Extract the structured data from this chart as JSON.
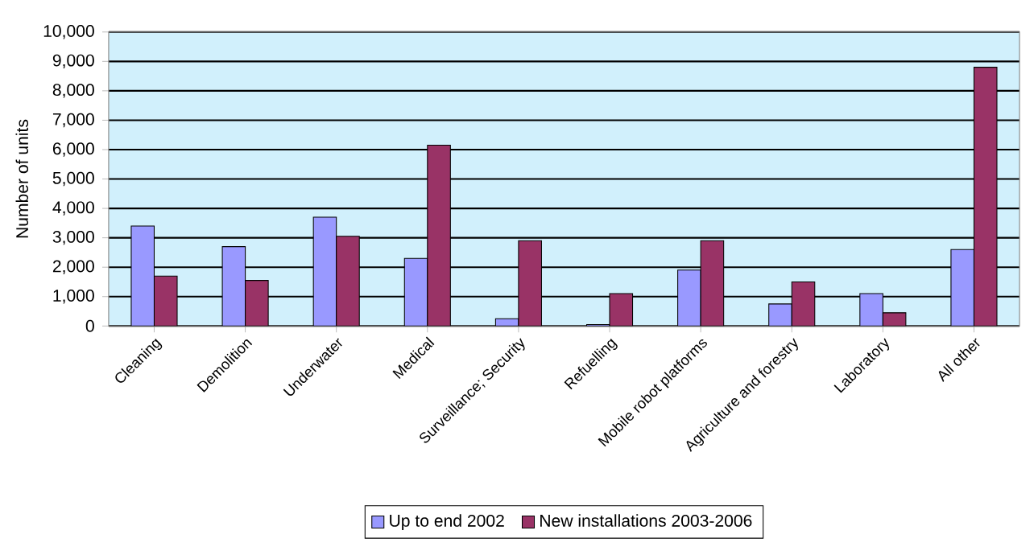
{
  "chart_data": {
    "type": "bar",
    "ylabel": "Number of units",
    "categories": [
      "Cleaning",
      "Demolition",
      "Underwater",
      "Medical",
      "Surveillance; Security",
      "Refuelling",
      "Mobile robot platforms",
      "Agriculture and forestry",
      "Laboratory",
      "All other"
    ],
    "series": [
      {
        "name": "Up to end 2002",
        "color": "#9999ff",
        "values": [
          3400,
          2700,
          3700,
          2300,
          250,
          50,
          1900,
          750,
          1100,
          2600
        ]
      },
      {
        "name": "New installations 2003-2006",
        "color": "#993366",
        "values": [
          1700,
          1550,
          3050,
          6150,
          2900,
          1100,
          2900,
          1500,
          450,
          8800
        ]
      }
    ],
    "ylim": [
      0,
      10000
    ],
    "yticks": [
      {
        "value": 0,
        "label": "0"
      },
      {
        "value": 1000,
        "label": "1,000"
      },
      {
        "value": 2000,
        "label": "2,000"
      },
      {
        "value": 3000,
        "label": "3,000"
      },
      {
        "value": 4000,
        "label": "4,000"
      },
      {
        "value": 5000,
        "label": "5,000"
      },
      {
        "value": 6000,
        "label": "6,000"
      },
      {
        "value": 7000,
        "label": "7,000"
      },
      {
        "value": 8000,
        "label": "8,000"
      },
      {
        "value": 9000,
        "label": "9,000"
      },
      {
        "value": 10000,
        "label": "10,000"
      }
    ],
    "grid": "y",
    "legend": "bottom"
  }
}
